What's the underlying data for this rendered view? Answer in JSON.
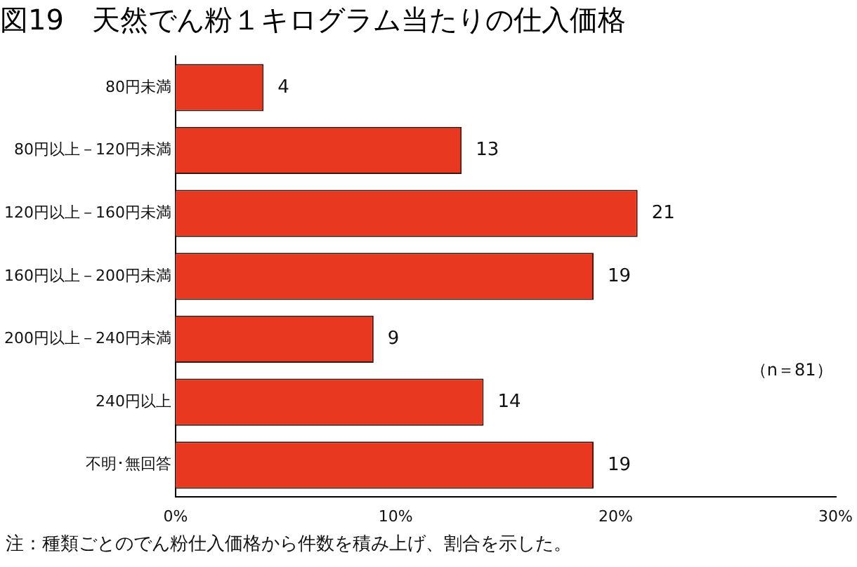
{
  "chart_data": {
    "type": "bar",
    "orientation": "horizontal",
    "title": "図19　天然でん粉１キログラム当たりの仕入価格",
    "categories": [
      "80円未満",
      "80円以上－120円未満",
      "120円以上－160円未満",
      "160円以上－200円未満",
      "200円以上－240円未満",
      "240円以上",
      "不明･無回答"
    ],
    "values": [
      4,
      13,
      21,
      19,
      9,
      14,
      19
    ],
    "color": "#e8381f",
    "data_labels": true,
    "xlim": [
      0,
      30
    ],
    "xticks": [
      {
        "value": 0,
        "label": "0%"
      },
      {
        "value": 10,
        "label": "10%"
      },
      {
        "value": 20,
        "label": "20%"
      },
      {
        "value": 30,
        "label": "30%"
      }
    ],
    "grid": false,
    "legend": false,
    "annotations": [
      "（n＝81）",
      "注：種類ごとのでん粉仕入価格から件数を積み上げ、割合を示した。"
    ]
  }
}
